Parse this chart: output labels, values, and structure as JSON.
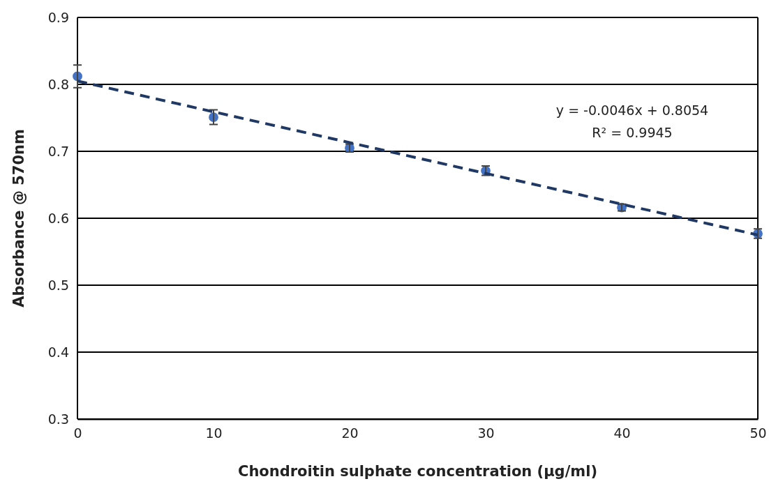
{
  "chart_data": {
    "type": "scatter",
    "xlabel": "Chondroitin sulphate concentration (µg/ml)",
    "ylabel": "Absorbance @ 570nm",
    "xlim": [
      0,
      50
    ],
    "xticks": [
      0,
      10,
      20,
      30,
      40,
      50
    ],
    "ylim": [
      0.3,
      0.9
    ],
    "yticks": [
      0.3,
      0.4,
      0.5,
      0.6,
      0.7,
      0.8,
      0.9
    ],
    "grid": "y",
    "series": [
      {
        "color": "#4472c4",
        "marker": "circle",
        "x": [
          0,
          10,
          20,
          30,
          40,
          50
        ],
        "values": [
          0.812,
          0.751,
          0.705,
          0.671,
          0.616,
          0.577
        ],
        "errors": [
          0.017,
          0.011,
          0.006,
          0.007,
          0.005,
          0.007
        ]
      },
      {
        "type": "line",
        "color": "#1f3864",
        "line_style": "dashed",
        "x": [
          0,
          50
        ],
        "values": [
          0.805,
          0.575
        ]
      }
    ],
    "annotations": [
      "y = -0.0046x + 0.8054",
      "R² = 0.9945"
    ]
  }
}
